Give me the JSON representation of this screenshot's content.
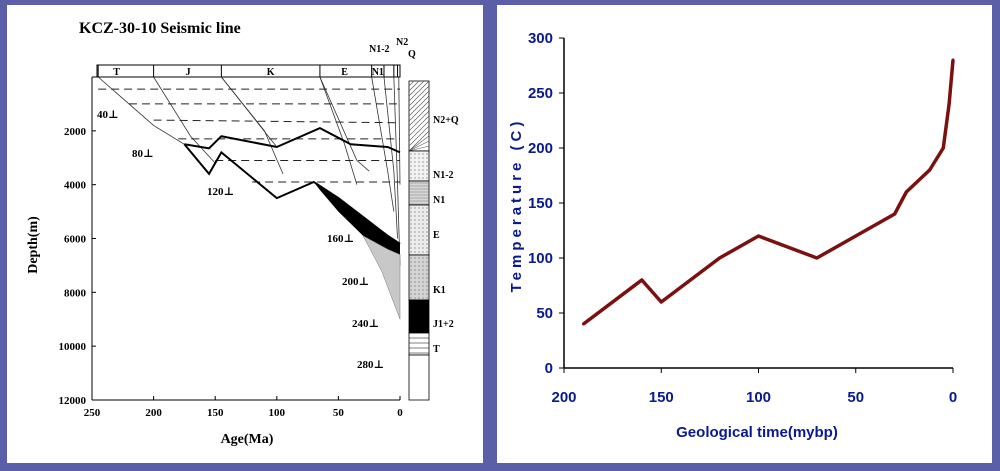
{
  "chart_data": [
    {
      "type": "line",
      "title": "KCZ-30-10 Seismic line",
      "xlabel": "Age(Ma)",
      "ylabel": "Depth(m)",
      "xlim": [
        250,
        0
      ],
      "ylim": [
        12000,
        0
      ],
      "x_ticks": [
        250,
        200,
        150,
        100,
        50,
        0
      ],
      "y_ticks": [
        2000,
        4000,
        6000,
        8000,
        10000,
        12000
      ],
      "period_labels": [
        "T",
        "J",
        "K",
        "E",
        "N1"
      ],
      "top_labels": [
        "N1-2",
        "N2",
        "Q"
      ],
      "temperature_labels": [
        "40⊥",
        "80⊥",
        "120⊥",
        "160⊥",
        "200⊥",
        "240⊥",
        "280⊥"
      ],
      "column_labels": [
        "N2+Q",
        "N1-2",
        "N1",
        "E",
        "K1",
        "J1+2",
        "T"
      ]
    },
    {
      "type": "line",
      "title": "",
      "xlabel": "Geological time(mybp)",
      "ylabel": "Temperature (C)",
      "xlim": [
        200,
        0
      ],
      "ylim": [
        0,
        300
      ],
      "x_ticks": [
        200,
        150,
        100,
        50,
        0
      ],
      "y_ticks": [
        0,
        50,
        100,
        150,
        200,
        250,
        300
      ],
      "color": "#7a1010",
      "series": [
        {
          "x": [
            190,
            160,
            150,
            120,
            100,
            70,
            50,
            30,
            24,
            12,
            5,
            2,
            0
          ],
          "y": [
            40,
            80,
            60,
            100,
            120,
            100,
            120,
            140,
            160,
            180,
            200,
            240,
            280
          ]
        }
      ]
    }
  ]
}
